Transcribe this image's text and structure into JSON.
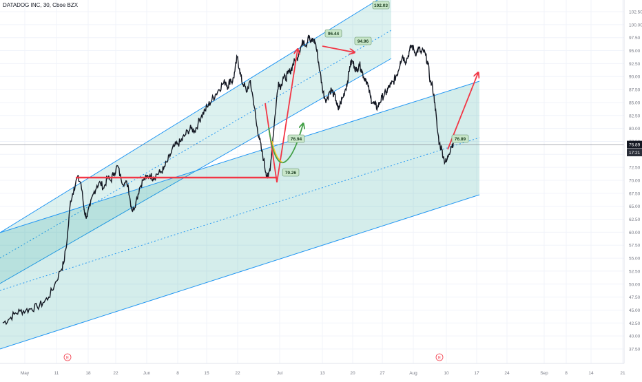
{
  "header": {
    "symbol_title": "DATADOG INC, 30, Cboe BZX"
  },
  "chart_data": {
    "type": "line",
    "title": "DATADOG INC, 30, Cboe BZX",
    "ylim": [
      37.5,
      103.5
    ],
    "y_ticks": [
      "102.50",
      "100.00",
      "97.50",
      "95.00",
      "92.50",
      "90.00",
      "87.50",
      "85.00",
      "82.50",
      "80.00",
      "77.50",
      "75.00",
      "72.50",
      "70.00",
      "67.50",
      "65.00",
      "62.50",
      "60.00",
      "57.50",
      "55.00",
      "52.50",
      "50.00",
      "47.50",
      "45.00",
      "42.50",
      "40.00",
      "37.50"
    ],
    "x_ticks": [
      "May",
      "11",
      "18",
      "22",
      "Jun",
      "8",
      "15",
      "22",
      "Jul",
      "13",
      "20",
      "27",
      "Aug",
      "10",
      "17",
      "24",
      "Sep",
      "8",
      "14",
      "21"
    ],
    "last_price_labels": [
      "76.89",
      "17:21"
    ],
    "series": [
      {
        "values": [
          [
            0,
            42.5
          ],
          [
            0.5,
            43.2
          ],
          [
            1,
            44.2
          ],
          [
            1.5,
            44.8
          ],
          [
            2,
            44.9
          ],
          [
            2.5,
            45.3
          ],
          [
            3,
            45.6
          ],
          [
            3.5,
            46.4
          ],
          [
            4,
            47.5
          ],
          [
            4.5,
            49.8
          ],
          [
            5,
            52.5
          ],
          [
            5.3,
            54
          ],
          [
            5.6,
            58.5
          ],
          [
            5.9,
            66
          ],
          [
            6.2,
            68.5
          ],
          [
            6.5,
            70.5
          ],
          [
            6.8,
            69.5
          ],
          [
            7.1,
            64
          ],
          [
            7.3,
            63
          ],
          [
            7.6,
            65
          ],
          [
            7.9,
            67.5
          ],
          [
            8.2,
            69
          ],
          [
            8.5,
            69.5
          ],
          [
            8.8,
            68.5
          ],
          [
            9.1,
            70.5
          ],
          [
            9.4,
            70
          ],
          [
            9.7,
            71.5
          ],
          [
            10,
            72.8
          ],
          [
            10.3,
            70.2
          ],
          [
            10.6,
            69.5
          ],
          [
            10.9,
            69.2
          ],
          [
            11.1,
            66
          ],
          [
            11.3,
            64
          ],
          [
            11.6,
            66
          ],
          [
            11.9,
            68.5
          ],
          [
            12.2,
            70
          ],
          [
            12.5,
            70.5
          ],
          [
            12.8,
            71
          ],
          [
            13.1,
            70.5
          ],
          [
            13.4,
            71.2
          ],
          [
            13.7,
            71.5
          ],
          [
            14,
            72.2
          ],
          [
            14.3,
            73.5
          ],
          [
            14.6,
            75
          ],
          [
            14.9,
            76.5
          ],
          [
            15.2,
            77
          ],
          [
            15.5,
            77.5
          ],
          [
            15.8,
            78.5
          ],
          [
            16.1,
            79.5
          ],
          [
            16.4,
            80
          ],
          [
            16.7,
            79.5
          ],
          [
            17,
            81
          ],
          [
            17.3,
            82.5
          ],
          [
            17.6,
            83.5
          ],
          [
            17.9,
            84.5
          ],
          [
            18.2,
            85.5
          ],
          [
            18.5,
            86.5
          ],
          [
            18.8,
            87.5
          ],
          [
            19.1,
            88.5
          ],
          [
            19.4,
            89
          ],
          [
            19.6,
            88
          ],
          [
            19.8,
            89.5
          ],
          [
            20,
            89
          ],
          [
            20.2,
            91
          ],
          [
            20.4,
            93.8
          ],
          [
            20.6,
            91.5
          ],
          [
            20.8,
            89
          ],
          [
            21,
            88.5
          ],
          [
            21.2,
            87
          ],
          [
            21.5,
            89
          ],
          [
            21.7,
            87
          ],
          [
            21.9,
            84
          ],
          [
            22.1,
            80.5
          ],
          [
            22.3,
            78.5
          ],
          [
            22.5,
            76
          ],
          [
            22.7,
            74
          ],
          [
            22.9,
            71.5
          ],
          [
            23.1,
            70.5
          ],
          [
            23.3,
            73
          ],
          [
            23.5,
            78
          ],
          [
            23.8,
            85
          ],
          [
            24,
            89
          ],
          [
            24.2,
            88
          ],
          [
            24.4,
            90
          ],
          [
            24.6,
            89.5
          ],
          [
            24.8,
            90.5
          ],
          [
            25,
            91
          ],
          [
            25.2,
            92
          ],
          [
            25.4,
            93
          ],
          [
            25.6,
            93.5
          ],
          [
            25.8,
            95
          ],
          [
            26,
            96
          ],
          [
            26.2,
            97
          ],
          [
            26.4,
            96
          ],
          [
            26.6,
            98
          ],
          [
            26.8,
            96.5
          ],
          [
            27,
            97.2
          ],
          [
            27.2,
            96.5
          ],
          [
            27.4,
            94
          ],
          [
            27.6,
            91
          ],
          [
            27.8,
            88
          ],
          [
            28,
            86
          ],
          [
            28.2,
            85.5
          ],
          [
            28.4,
            87
          ],
          [
            28.6,
            87.5
          ],
          [
            28.8,
            86.5
          ],
          [
            29,
            85.5
          ],
          [
            29.2,
            83.5
          ],
          [
            29.4,
            85
          ],
          [
            29.6,
            86
          ],
          [
            29.8,
            87.5
          ],
          [
            30,
            89
          ],
          [
            30.2,
            92
          ],
          [
            30.4,
            93
          ],
          [
            30.6,
            92
          ],
          [
            30.8,
            91
          ],
          [
            31,
            92.5
          ],
          [
            31.2,
            91.5
          ],
          [
            31.4,
            90
          ],
          [
            31.6,
            89.5
          ],
          [
            31.8,
            88
          ],
          [
            32,
            86
          ],
          [
            32.2,
            85
          ],
          [
            32.4,
            84.5
          ],
          [
            32.6,
            84
          ],
          [
            32.8,
            85
          ],
          [
            33,
            86
          ],
          [
            33.2,
            86.5
          ],
          [
            33.4,
            87
          ],
          [
            33.6,
            88
          ],
          [
            33.8,
            88.5
          ],
          [
            34,
            89
          ],
          [
            34.2,
            90
          ],
          [
            34.4,
            91
          ],
          [
            34.6,
            93
          ],
          [
            34.8,
            94
          ],
          [
            35,
            93
          ],
          [
            35.2,
            93.5
          ],
          [
            35.4,
            95
          ],
          [
            35.6,
            96
          ],
          [
            35.8,
            95
          ],
          [
            36,
            94.5
          ],
          [
            36.2,
            95.5
          ],
          [
            36.4,
            94.5
          ],
          [
            36.6,
            95
          ],
          [
            36.8,
            94
          ],
          [
            37,
            92.5
          ],
          [
            37.2,
            89
          ],
          [
            37.4,
            88
          ],
          [
            37.6,
            85
          ],
          [
            37.8,
            80
          ],
          [
            38,
            77
          ],
          [
            38.2,
            76
          ],
          [
            38.4,
            74
          ],
          [
            38.6,
            73.5
          ],
          [
            38.8,
            75
          ],
          [
            39,
            76.5
          ],
          [
            39.2,
            77.2
          ]
        ]
      }
    ],
    "annotations": [
      "102.03",
      "96.44",
      "94.96",
      "76.94",
      "70.26",
      "76.89"
    ],
    "event_markers": [
      "E",
      "E"
    ],
    "colors": {
      "price": "#131722",
      "channel_fill": "#26a69a",
      "channel_line": "#2196f3",
      "arrow_red": "#f23645",
      "arrow_green": "#43a047",
      "label_bg": "#c8e6c9"
    }
  }
}
